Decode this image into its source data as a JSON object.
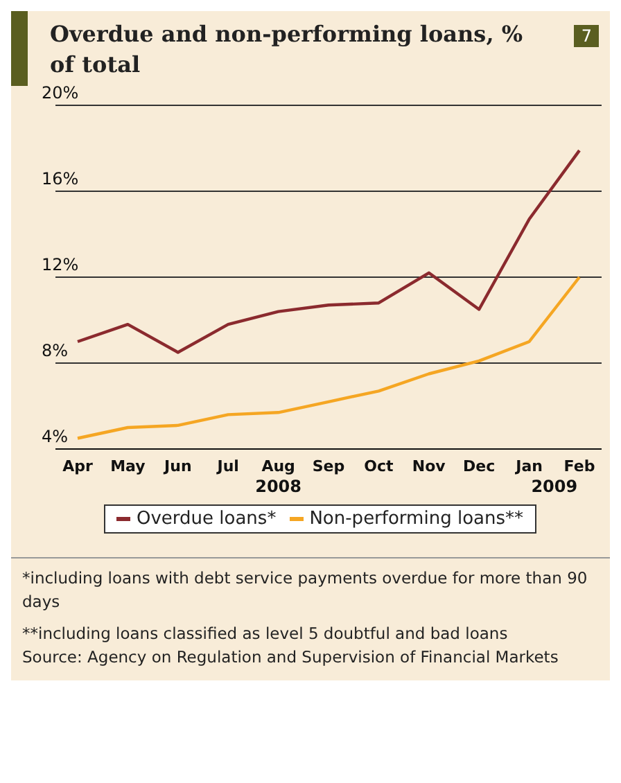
{
  "chart_data": {
    "type": "line",
    "title": "Overdue and non-performing loans, % of total",
    "categories": [
      "Apr",
      "May",
      "Jun",
      "Jul",
      "Aug",
      "Sep",
      "Oct",
      "Nov",
      "Dec",
      "Jan",
      "Feb"
    ],
    "series": [
      {
        "name": "Overdue loans*",
        "color": "#8b2a2e",
        "values": [
          9.0,
          9.8,
          8.5,
          9.8,
          10.4,
          10.7,
          10.8,
          12.2,
          10.5,
          14.7,
          17.9
        ]
      },
      {
        "name": "Non-performing loans**",
        "color": "#f5a623",
        "values": [
          4.5,
          5.0,
          5.1,
          5.6,
          5.7,
          6.2,
          6.7,
          7.5,
          8.1,
          9.0,
          12.0
        ]
      }
    ],
    "ylim": [
      4,
      20
    ],
    "yticks": [
      {
        "value": 4,
        "label": "4%"
      },
      {
        "value": 8,
        "label": "8%"
      },
      {
        "value": 12,
        "label": "12%"
      },
      {
        "value": 16,
        "label": "16%"
      },
      {
        "value": 20,
        "label": "20%"
      }
    ],
    "grid": "y",
    "legend": "bottom",
    "marker": "none",
    "line_style": "solid",
    "annotations": [
      "7",
      "2008",
      "2009",
      "*including loans with debt service payments overdue for more than 90 days",
      "**including loans classified as level 5 doubtful and bad loans",
      "Source: Agency on Regulation and Supervision of Financial Markets"
    ]
  }
}
